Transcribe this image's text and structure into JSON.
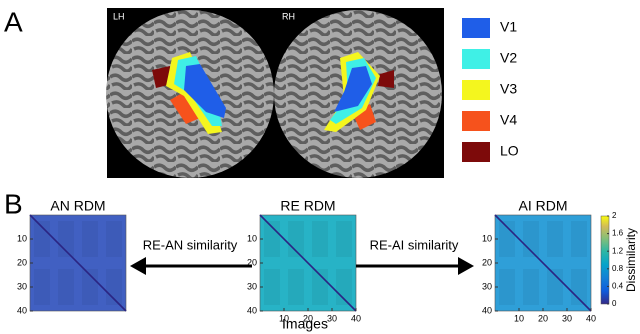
{
  "panel_a": {
    "label": "A",
    "hemispheres": [
      "LH",
      "RH"
    ],
    "legend": [
      {
        "name": "V1",
        "color": "#1f5ee8"
      },
      {
        "name": "V2",
        "color": "#3ff0e6"
      },
      {
        "name": "V3",
        "color": "#f4f61e"
      },
      {
        "name": "V4",
        "color": "#f6521c"
      },
      {
        "name": "LO",
        "color": "#7d0a0a"
      }
    ]
  },
  "panel_b": {
    "label": "B",
    "xlabel": "Images",
    "matrices": [
      {
        "title": "AN RDM",
        "color": "#4160c2",
        "lim": [
          0,
          40
        ],
        "yticks": [
          10,
          20,
          30,
          40
        ]
      },
      {
        "title": "RE RDM",
        "color": "#27b3c6",
        "lim": [
          0,
          40
        ],
        "yticks": [
          10,
          20,
          30,
          40
        ],
        "xticks": [
          10,
          20,
          30,
          40
        ]
      },
      {
        "title": "AI RDM",
        "color": "#2f9fd8",
        "lim": [
          0,
          40
        ],
        "yticks": [
          10,
          20,
          30,
          40
        ],
        "xticks": [
          10,
          20,
          30,
          40
        ]
      }
    ],
    "arrows": [
      "RE-AN similarity",
      "RE-AI similarity"
    ],
    "colorbar": {
      "label": "Dissimilarity",
      "lim": [
        0,
        2
      ],
      "ticks": [
        0,
        0.4,
        0.8,
        1.2,
        1.6,
        2
      ]
    }
  }
}
